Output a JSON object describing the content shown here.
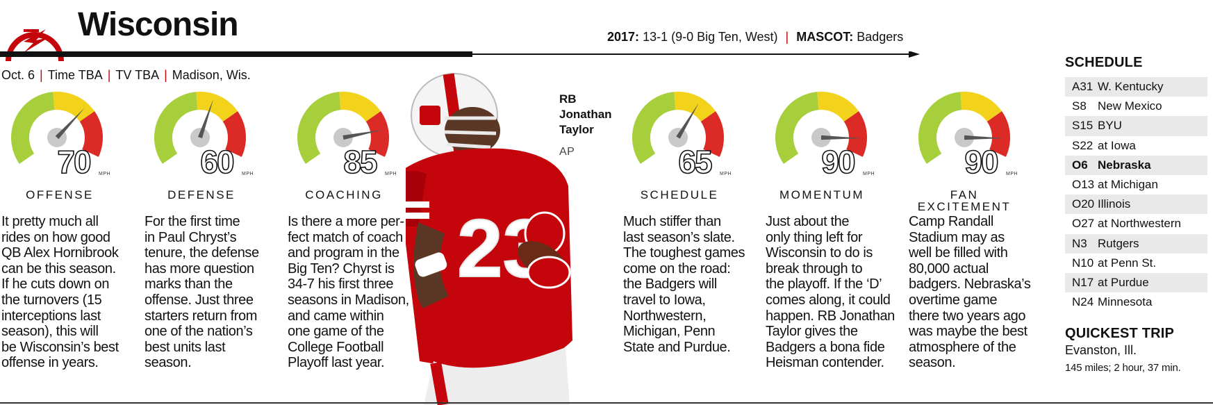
{
  "header": {
    "team": "Wisconsin",
    "season_label": "2017:",
    "season_value": "13-1 (9-0 Big Ten, West)",
    "mascot_label": "MASCOT:",
    "mascot_value": "Badgers",
    "separator": "|"
  },
  "game_info": {
    "date": "Oct. 6",
    "time": "Time TBA",
    "tv": "TV TBA",
    "location": "Madison, Wis."
  },
  "gauges": [
    {
      "id": "offense",
      "value": 70,
      "display": "70",
      "unit": "MPH",
      "label": "OFFENSE",
      "text": [
        "It pretty much all",
        "rides on how good",
        "QB Alex Hornibrook",
        "can be this season.",
        "If he cuts down on",
        "the turnovers (15",
        "interceptions last",
        "season), this will",
        "be Wisconsin’s best",
        "offense in years."
      ]
    },
    {
      "id": "defense",
      "value": 60,
      "display": "60",
      "unit": "MPH",
      "label": "DEFENSE",
      "text": [
        "For the first time",
        "in Paul Chryst’s",
        "tenure, the defense",
        "has more question",
        "marks than the",
        "offense. Just three",
        "starters return from",
        "one of the nation’s",
        "best units last",
        "season."
      ]
    },
    {
      "id": "coaching",
      "value": 85,
      "display": "85",
      "unit": "MPH",
      "label": "COACHING",
      "text": [
        "Is there a more per-",
        "fect match of coach",
        "and program in the",
        "Big Ten? Chyrst is",
        "34-7 his first three",
        "seasons in Madison,",
        "and came within",
        "one game of the",
        "College Football",
        "Playoff last year."
      ]
    },
    {
      "id": "schedule",
      "value": 65,
      "display": "65",
      "unit": "MPH",
      "label": "SCHEDULE",
      "text": [
        "Much stiffer than",
        "last season’s slate.",
        "The toughest games",
        "come on the road:",
        "the Badgers will",
        "travel to Iowa,",
        "Northwestern,",
        "Michigan, Penn",
        "State and Purdue."
      ]
    },
    {
      "id": "momentum",
      "value": 90,
      "display": "90",
      "unit": "MPH",
      "label": "MOMENTUM",
      "text": [
        "Just about the",
        "only thing left for",
        "Wisconsin to do is",
        "break through to",
        "the playoff. If the ‘D’",
        "comes along, it could",
        "happen. RB Jonathan",
        "Taylor gives the",
        "Badgers a bona fide",
        "Heisman contender."
      ]
    },
    {
      "id": "fan-excitement",
      "value": 90,
      "display": "90",
      "unit": "MPH",
      "label": "FAN EXCITEMENT",
      "text": [
        "Camp Randall",
        "Stadium may as",
        "well be filled with",
        "80,000 actual",
        "badgers. Nebraska’s",
        "overtime game",
        "there two years ago",
        "was maybe the best",
        "atmosphere of the",
        "season."
      ]
    }
  ],
  "photo": {
    "caption": [
      "RB",
      "Jonathan",
      "Taylor"
    ],
    "credit": "AP",
    "jersey_number": "23",
    "jersey_color": "#c5050c"
  },
  "schedule": {
    "heading": "SCHEDULE",
    "games": [
      {
        "date": "A31",
        "opponent": "W. Kentucky"
      },
      {
        "date": "S8",
        "opponent": "New Mexico"
      },
      {
        "date": "S15",
        "opponent": "BYU"
      },
      {
        "date": "S22",
        "opponent": "at Iowa"
      },
      {
        "date": "O6",
        "opponent": "Nebraska",
        "current": true
      },
      {
        "date": "O13",
        "opponent": "at Michigan"
      },
      {
        "date": "O20",
        "opponent": "Illinois"
      },
      {
        "date": "O27",
        "opponent": "at Northwestern"
      },
      {
        "date": "N3",
        "opponent": "Rutgers"
      },
      {
        "date": "N10",
        "opponent": "at Penn St."
      },
      {
        "date": "N17",
        "opponent": "at Purdue"
      },
      {
        "date": "N24",
        "opponent": "Minnesota"
      }
    ]
  },
  "quickest_trip": {
    "heading": "QUICKEST TRIP",
    "city": "Evanston, Ill.",
    "detail": "145 miles; 2 hour, 37 min."
  },
  "colors": {
    "accent_red": "#c5050c",
    "gauge_green": "#a6cf3b",
    "gauge_yellow": "#f2d21a",
    "gauge_red": "#dc2a26",
    "needle_hub": "#c9c9c9"
  },
  "gauge_scale": {
    "min": 0,
    "max": 100
  }
}
